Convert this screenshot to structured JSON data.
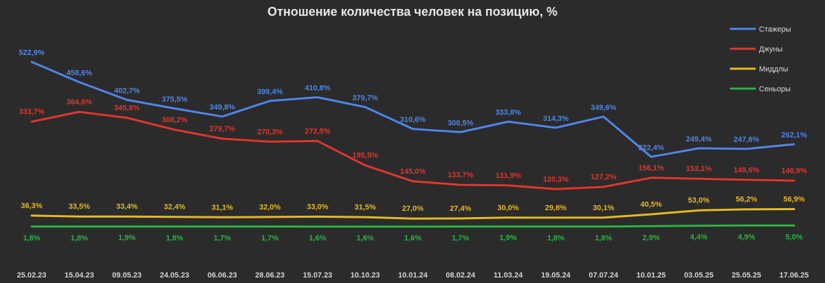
{
  "chart_data": {
    "type": "line",
    "title": "Отношение количества человек на позицию, %",
    "xlabel": "",
    "ylabel": "",
    "grid": false,
    "legend_position": "top-right",
    "categories": [
      "25.02.23",
      "15.04.23",
      "09.05.23",
      "24.05.23",
      "06.06.23",
      "28.06.23",
      "15.07.23",
      "10.10.23",
      "10.01.24",
      "08.02.24",
      "11.03.24",
      "19.05.24",
      "07.07.24",
      "10.01.25",
      "03.05.25",
      "25.05.25",
      "17.06.25"
    ],
    "ylim": [
      -40,
      560
    ],
    "series": [
      {
        "name": "Стажеры",
        "color": "#4f86e8",
        "values": [
          522.9,
          458.6,
          402.7,
          375.5,
          349.8,
          399.4,
          410.8,
          379.7,
          310.6,
          300.5,
          333.8,
          314.3,
          349.6,
          222.4,
          249.4,
          247.6,
          262.1
        ],
        "labels": [
          "522,9%",
          "458,6%",
          "402,7%",
          "375,5%",
          "349,8%",
          "399,4%",
          "410,8%",
          "379,7%",
          "310,6%",
          "300,5%",
          "333,8%",
          "314,3%",
          "349,6%",
          "222,4%",
          "249,4%",
          "247,6%",
          "262,1%"
        ]
      },
      {
        "name": "Джуны",
        "color": "#e0362f",
        "values": [
          333.7,
          364.6,
          345.8,
          308.2,
          279.7,
          270.3,
          272.5,
          195.5,
          145.0,
          133.7,
          131.9,
          120.3,
          127.2,
          156.1,
          153.1,
          149.6,
          146.9
        ],
        "labels": [
          "333,7%",
          "364,6%",
          "345,8%",
          "308,2%",
          "279,7%",
          "270,3%",
          "272,5%",
          "195,5%",
          "145,0%",
          "133,7%",
          "131,9%",
          "120,3%",
          "127,2%",
          "156,1%",
          "153,1%",
          "149,6%",
          "146,9%"
        ]
      },
      {
        "name": "Миддлы",
        "color": "#e8b923",
        "values": [
          36.3,
          33.5,
          33.4,
          32.4,
          31.1,
          32.0,
          33.0,
          31.5,
          27.0,
          27.4,
          30.0,
          29.8,
          30.1,
          40.5,
          53.0,
          56.2,
          56.9
        ],
        "labels": [
          "36,3%",
          "33,5%",
          "33,4%",
          "32,4%",
          "31,1%",
          "32,0%",
          "33,0%",
          "31,5%",
          "27,0%",
          "27,4%",
          "30,0%",
          "29,8%",
          "30,1%",
          "40,5%",
          "53,0%",
          "56,2%",
          "56,9%"
        ]
      },
      {
        "name": "Сеньоры",
        "color": "#2bb540",
        "values": [
          1.8,
          1.8,
          1.9,
          1.8,
          1.7,
          1.7,
          1.6,
          1.6,
          1.6,
          1.7,
          1.9,
          1.8,
          1.8,
          2.9,
          4.4,
          4.9,
          5.0
        ],
        "labels": [
          "1,8%",
          "1,8%",
          "1,9%",
          "1,8%",
          "1,7%",
          "1,7%",
          "1,6%",
          "1,6%",
          "1,6%",
          "1,7%",
          "1,9%",
          "1,8%",
          "1,8%",
          "2,9%",
          "4,4%",
          "4,9%",
          "5,0%"
        ]
      }
    ]
  }
}
